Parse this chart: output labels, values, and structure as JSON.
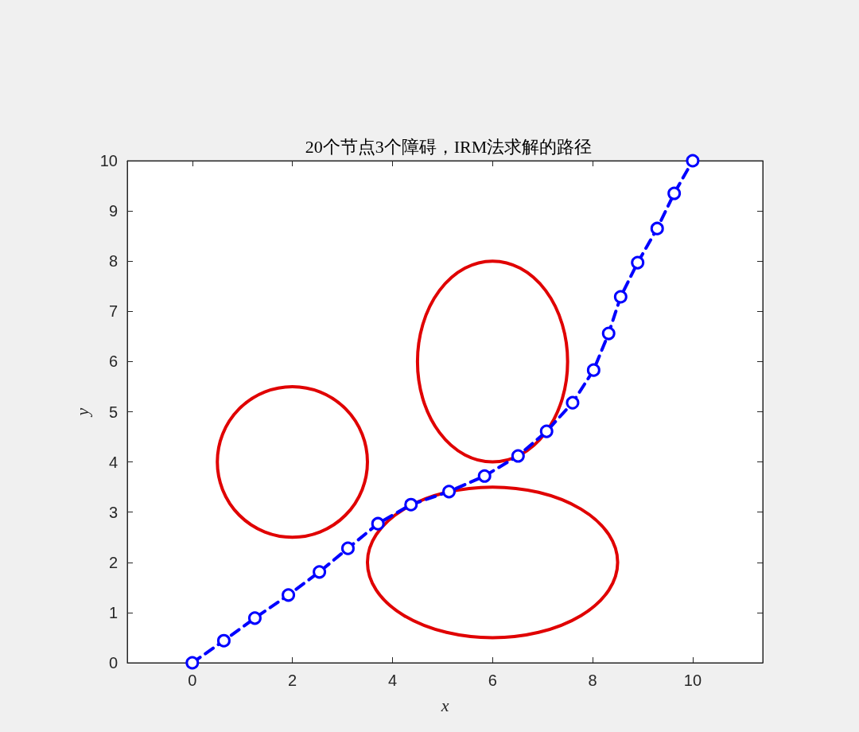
{
  "chart_data": {
    "type": "line",
    "title": "20个节点3个障碍，IRM法求解的路径",
    "xlabel": "x",
    "ylabel": "y",
    "xlim": [
      -1.3,
      11.4
    ],
    "xticks": [
      0,
      2,
      4,
      6,
      8,
      10
    ],
    "ylim": [
      0,
      10
    ],
    "yticks": [
      0,
      1,
      2,
      3,
      4,
      5,
      6,
      7,
      8,
      9,
      10
    ],
    "legend": false,
    "series": [
      {
        "color": "#0000ff",
        "marker": "circle",
        "line_style": "dashed",
        "x": [
          0,
          0.63,
          1.25,
          1.92,
          2.54,
          3.11,
          3.71,
          4.37,
          5.13,
          5.84,
          6.51,
          7.08,
          7.6,
          8.02,
          8.32,
          8.56,
          8.9,
          9.29,
          9.63,
          10
        ],
        "values": [
          0,
          0.44,
          0.89,
          1.35,
          1.81,
          2.28,
          2.77,
          3.15,
          3.41,
          3.72,
          4.12,
          4.61,
          5.18,
          5.83,
          6.56,
          7.29,
          7.97,
          8.65,
          9.35,
          10
        ]
      }
    ]
  }
}
